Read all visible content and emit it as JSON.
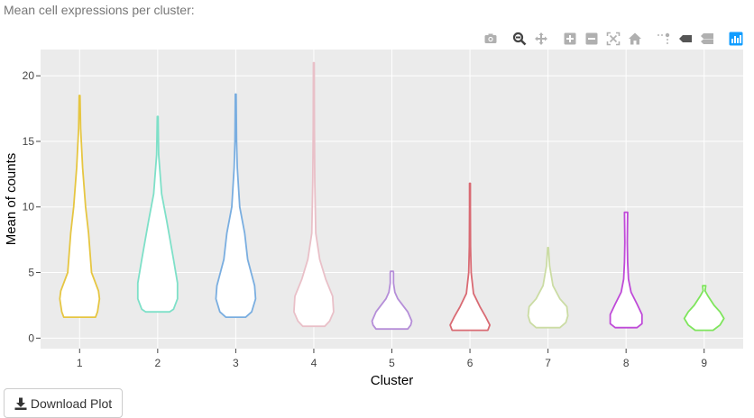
{
  "header": {
    "text": "Mean cell expressions per cluster:"
  },
  "toolbar": {
    "icons": [
      "camera-icon",
      "zoom-icon",
      "pan-icon",
      "zoom-in-icon",
      "zoom-out-icon",
      "autoscale-icon",
      "reset-axes-icon",
      "spike-lines-icon",
      "hover-closest-icon",
      "hover-compare-icon",
      "plotly-logo-icon"
    ]
  },
  "download": {
    "label": "Download Plot",
    "icon": "download-icon"
  },
  "chart_data": {
    "type": "violin",
    "xlabel": "Cluster",
    "ylabel": "Mean of counts",
    "ylim": [
      -0.8,
      22
    ],
    "yticks": [
      0,
      5,
      10,
      15,
      20
    ],
    "grid": true,
    "categories": [
      "1",
      "2",
      "3",
      "4",
      "5",
      "6",
      "7",
      "8",
      "9"
    ],
    "series": [
      {
        "category": "1",
        "color": "#e6c642",
        "profile": [
          [
            1.6,
            0.8
          ],
          [
            2.0,
            0.9
          ],
          [
            3.0,
            1.0
          ],
          [
            3.6,
            0.95
          ],
          [
            5.0,
            0.6
          ],
          [
            8.0,
            0.45
          ],
          [
            10.0,
            0.3
          ],
          [
            13.0,
            0.15
          ],
          [
            16.0,
            0.05
          ],
          [
            18.5,
            0.02
          ]
        ]
      },
      {
        "category": "2",
        "color": "#7ee0c8",
        "profile": [
          [
            2.0,
            0.6
          ],
          [
            2.2,
            0.8
          ],
          [
            3.0,
            1.0
          ],
          [
            4.2,
            1.0
          ],
          [
            6.0,
            0.8
          ],
          [
            9.0,
            0.45
          ],
          [
            11.0,
            0.2
          ],
          [
            14.0,
            0.05
          ],
          [
            16.9,
            0.02
          ]
        ]
      },
      {
        "category": "3",
        "color": "#7aaee0",
        "profile": [
          [
            1.6,
            0.5
          ],
          [
            2.0,
            0.8
          ],
          [
            3.0,
            1.0
          ],
          [
            4.0,
            0.95
          ],
          [
            6.0,
            0.6
          ],
          [
            8.0,
            0.45
          ],
          [
            10.0,
            0.2
          ],
          [
            13.0,
            0.08
          ],
          [
            15.0,
            0.04
          ],
          [
            18.6,
            0.02
          ]
        ]
      },
      {
        "category": "4",
        "color": "#e9c0c8",
        "profile": [
          [
            0.9,
            0.55
          ],
          [
            1.3,
            0.8
          ],
          [
            2.0,
            1.0
          ],
          [
            3.2,
            0.95
          ],
          [
            4.5,
            0.6
          ],
          [
            6.0,
            0.3
          ],
          [
            8.0,
            0.1
          ],
          [
            12.0,
            0.05
          ],
          [
            16.0,
            0.03
          ],
          [
            21.0,
            0.02
          ]
        ]
      },
      {
        "category": "5",
        "color": "#b58ed8",
        "profile": [
          [
            0.7,
            0.8
          ],
          [
            1.0,
            0.95
          ],
          [
            1.3,
            1.0
          ],
          [
            2.0,
            0.8
          ],
          [
            2.5,
            0.55
          ],
          [
            3.0,
            0.3
          ],
          [
            3.5,
            0.15
          ],
          [
            4.2,
            0.08
          ],
          [
            5.0,
            0.08
          ],
          [
            5.1,
            0.07
          ]
        ]
      },
      {
        "category": "6",
        "color": "#d96a73",
        "profile": [
          [
            0.6,
            0.9
          ],
          [
            1.0,
            1.0
          ],
          [
            1.6,
            0.8
          ],
          [
            2.4,
            0.5
          ],
          [
            3.4,
            0.18
          ],
          [
            5.0,
            0.06
          ],
          [
            7.0,
            0.03
          ],
          [
            10.0,
            0.02
          ],
          [
            11.8,
            0.02
          ]
        ]
      },
      {
        "category": "7",
        "color": "#cbdca4",
        "profile": [
          [
            0.8,
            0.6
          ],
          [
            1.2,
            0.9
          ],
          [
            1.7,
            1.0
          ],
          [
            2.4,
            0.95
          ],
          [
            3.0,
            0.6
          ],
          [
            4.0,
            0.25
          ],
          [
            5.5,
            0.08
          ],
          [
            6.9,
            0.02
          ]
        ]
      },
      {
        "category": "8",
        "color": "#bf4ad8",
        "profile": [
          [
            0.8,
            0.55
          ],
          [
            1.1,
            0.8
          ],
          [
            1.8,
            0.8
          ],
          [
            2.6,
            0.55
          ],
          [
            3.5,
            0.25
          ],
          [
            4.5,
            0.12
          ],
          [
            5.8,
            0.08
          ],
          [
            7.3,
            0.06
          ],
          [
            8.5,
            0.07
          ],
          [
            9.6,
            0.08
          ]
        ]
      },
      {
        "category": "9",
        "color": "#7ee55c",
        "profile": [
          [
            0.6,
            0.45
          ],
          [
            1.0,
            0.8
          ],
          [
            1.5,
            1.0
          ],
          [
            2.0,
            0.8
          ],
          [
            2.5,
            0.5
          ],
          [
            3.2,
            0.2
          ],
          [
            3.6,
            0.05
          ],
          [
            4.0,
            0.08
          ]
        ]
      }
    ]
  }
}
